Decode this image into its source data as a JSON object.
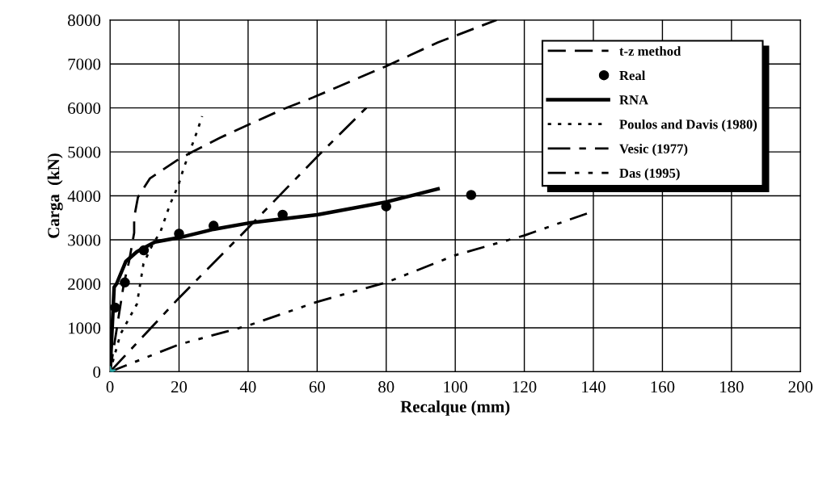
{
  "chart_data": {
    "type": "line",
    "xlabel": "Recalque (mm)",
    "ylabel": "Carga  (kN)",
    "xlim": [
      0,
      200
    ],
    "xticks": [
      0,
      20,
      40,
      60,
      80,
      100,
      120,
      140,
      160,
      180,
      200
    ],
    "ylim": [
      0,
      8000
    ],
    "yticks": [
      0,
      1000,
      2000,
      3000,
      4000,
      5000,
      6000,
      7000,
      8000
    ],
    "grid": true,
    "legend": "top right",
    "series": [
      {
        "name": "t-z method",
        "line_style": "dashed",
        "color": "#000000",
        "x": [
          0,
          2,
          4,
          5.5,
          7,
          7,
          8.1,
          11.6,
          20,
          23.9,
          31.8,
          41,
          50.4,
          58.9,
          80,
          95,
          112
        ],
        "values": [
          0,
          1000,
          2000,
          2500,
          3160,
          3510,
          3970,
          4400,
          4840,
          5000,
          5320,
          5650,
          5980,
          6240,
          6950,
          7490,
          8000
        ]
      },
      {
        "name": "Real",
        "type": "scatter",
        "marker": "circle",
        "color": "#000000",
        "x": [
          1.5,
          4.3,
          9.8,
          20,
          30,
          50,
          80,
          104.6
        ],
        "values": [
          1460,
          2030,
          2760,
          3140,
          3320,
          3570,
          3760,
          4020
        ]
      },
      {
        "name": "RNA",
        "line_style": "solid",
        "color": "#000000",
        "x": [
          0,
          0.4,
          1.2,
          1.9,
          4.6,
          7.8,
          13,
          20,
          30,
          40,
          60,
          80,
          95
        ],
        "values": [
          0,
          620,
          1920,
          2000,
          2510,
          2730,
          2950,
          3050,
          3240,
          3380,
          3570,
          3860,
          4160
        ]
      },
      {
        "name": "Poulos and Davis (1980)",
        "line_style": "dotted",
        "color": "#000000",
        "x": [
          0,
          3,
          7.8,
          9.7,
          12,
          14.7,
          17.4,
          19.8,
          21.3,
          25.2,
          26.7
        ],
        "values": [
          0,
          850,
          1540,
          2460,
          2840,
          3200,
          3810,
          4240,
          4620,
          5460,
          5810
        ]
      },
      {
        "name": "Vesic (1977)",
        "line_style": "dashdot",
        "color": "#000000",
        "x": [
          0,
          20,
          40,
          60,
          74.6
        ],
        "values": [
          0,
          1680,
          3270,
          4890,
          6030
        ]
      },
      {
        "name": "Das (1995)",
        "line_style": "dashdotdot",
        "color": "#000000",
        "x": [
          0,
          20,
          40,
          60,
          80,
          100,
          120,
          140
        ],
        "values": [
          0,
          620,
          1050,
          1590,
          2030,
          2650,
          3100,
          3650
        ]
      },
      {
        "type": "scatter",
        "marker": "star",
        "color": "#2aa8a8",
        "x": [
          0
        ],
        "values": [
          0
        ]
      }
    ]
  }
}
